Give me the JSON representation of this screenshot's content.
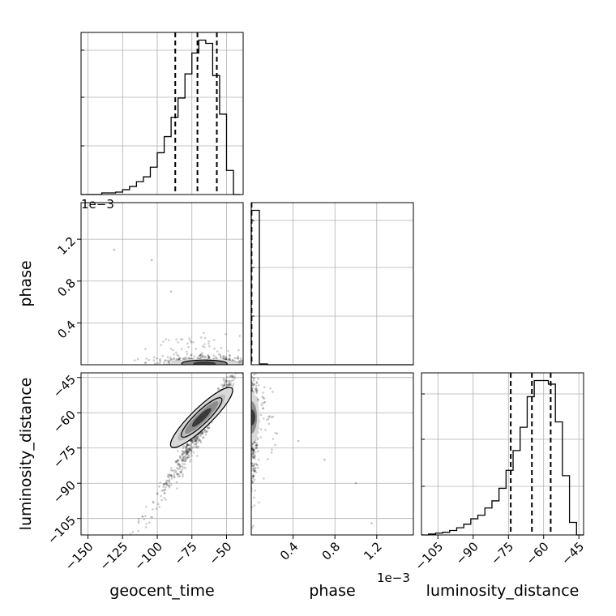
{
  "chart_data": {
    "type": "corner",
    "parameters": [
      "geocent_time",
      "phase",
      "luminosity_distance"
    ],
    "axis_labels": {
      "geocent_time": "geocent_time",
      "phase": "phase",
      "luminosity_distance": "luminosity_distance"
    },
    "offset_text": {
      "phase_yaxis": "1e−3",
      "phase_xaxis": "1e−3"
    },
    "ranges": {
      "geocent_time": [
        -155,
        -38
      ],
      "phase": [
        0,
        1.55
      ],
      "luminosity_distance": [
        -112,
        -43
      ]
    },
    "ticks": {
      "geocent_time": [
        -150,
        -125,
        -100,
        -75,
        -50
      ],
      "phase": [
        0.4,
        0.8,
        1.2
      ],
      "luminosity_distance": [
        -105,
        -90,
        -75,
        -60,
        -45
      ]
    },
    "tick_labels": {
      "geocent_time": [
        "−150",
        "−125",
        "−100",
        "−75",
        "−50"
      ],
      "phase": [
        "0.4",
        "0.8",
        "1.2"
      ],
      "luminosity_distance": [
        "−105",
        "−90",
        "−75",
        "−60",
        "−45"
      ]
    },
    "quantiles": {
      "geocent_time": [
        -87,
        -71,
        -57
      ],
      "phase": [
        0.003
      ],
      "luminosity_distance": [
        -74,
        -65,
        -57
      ]
    },
    "histograms": {
      "geocent_time": {
        "bin_edges": [
          -155,
          -150,
          -145,
          -140,
          -135,
          -130,
          -125,
          -120,
          -115,
          -110,
          -105,
          -100,
          -95,
          -90,
          -85,
          -80,
          -75,
          -70,
          -65,
          -60,
          -55,
          -50,
          -45,
          -40
        ],
        "counts": [
          0,
          0,
          0,
          0.01,
          0.01,
          0.015,
          0.03,
          0.05,
          0.08,
          0.11,
          0.17,
          0.26,
          0.36,
          0.48,
          0.6,
          0.75,
          0.88,
          0.96,
          0.94,
          0.74,
          0.5,
          0.15,
          0
        ]
      },
      "phase": {
        "bin_edges": [
          0,
          0.0775,
          0.155,
          0.2325,
          0.31,
          0.3875,
          0.465,
          0.5425,
          0.62,
          0.6975,
          0.775,
          0.8525,
          0.93,
          1.0075,
          1.085,
          1.1625,
          1.24,
          1.3175,
          1.395,
          1.4725,
          1.55
        ],
        "counts": [
          1,
          0.005,
          0,
          0,
          0,
          0,
          0,
          0,
          0,
          0,
          0,
          0,
          0,
          0,
          0,
          0,
          0,
          0,
          0,
          0
        ]
      },
      "luminosity_distance": {
        "bin_edges": [
          -112,
          -109,
          -106,
          -103,
          -100,
          -97,
          -94,
          -91,
          -88,
          -85,
          -82,
          -79,
          -76,
          -73,
          -70,
          -67,
          -64,
          -61,
          -58,
          -55,
          -52,
          -49,
          -46,
          -43
        ],
        "counts": [
          0,
          0.005,
          0.01,
          0.015,
          0.025,
          0.04,
          0.06,
          0.09,
          0.11,
          0.15,
          0.19,
          0.26,
          0.36,
          0.47,
          0.6,
          0.77,
          0.86,
          0.86,
          0.84,
          0.63,
          0.33,
          0.07,
          0
        ]
      }
    },
    "scatter_geocent_time_vs_luminosity_distance": {
      "correlation": "strong positive, linear",
      "approx_relation": "luminosity_distance ≈ 0.95 × geocent_time − 2",
      "density_peak": [
        -68,
        -62
      ]
    },
    "scatter_geocent_time_vs_phase": {
      "concentration": "phase near 0, geocent_time −90 to −40",
      "outliers": [
        [
          -131,
          1.1
        ],
        [
          -104,
          1.0
        ],
        [
          -90,
          0.7
        ]
      ]
    },
    "scatter_phase_vs_luminosity_distance": {
      "concentration": "phase near 0, luminosity_distance −105 to −45",
      "outliers": [
        [
          0.7,
          -80
        ],
        [
          1.0,
          -90
        ],
        [
          1.15,
          -107
        ],
        [
          0.45,
          -72
        ]
      ]
    },
    "grid": true,
    "colors": {
      "marks": "#000000",
      "grid": "#b0b0b0",
      "background": "#ffffff"
    }
  }
}
